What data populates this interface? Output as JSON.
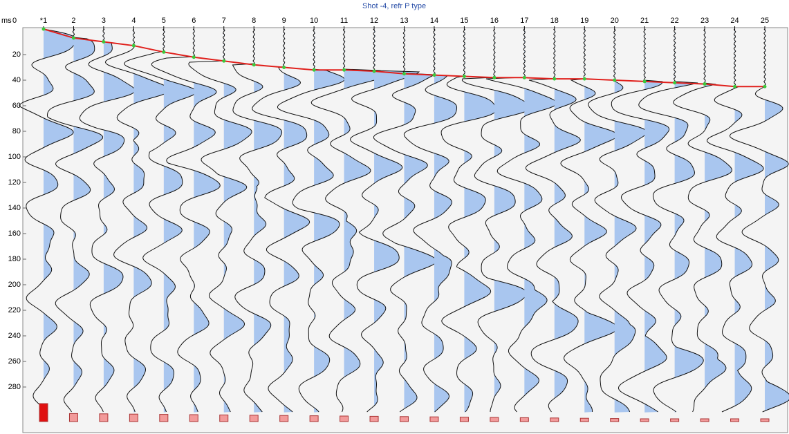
{
  "chart_data": {
    "type": "line",
    "title": "Shot -4, refr P type",
    "y_label": "ms",
    "categories": [
      "*1",
      "2",
      "3",
      "4",
      "5",
      "6",
      "7",
      "8",
      "9",
      "10",
      "11",
      "12",
      "13",
      "14",
      "15",
      "16",
      "17",
      "18",
      "19",
      "20",
      "21",
      "22",
      "23",
      "24",
      "25"
    ],
    "series": [
      {
        "name": "refr P",
        "color": "#e0201c",
        "values": [
          0,
          7,
          10,
          13,
          18,
          22,
          25,
          28,
          30,
          32,
          32,
          33,
          35,
          36,
          37,
          38,
          38,
          39,
          39,
          40,
          41,
          42,
          43,
          45,
          45
        ]
      }
    ],
    "ylim": [
      0,
      315
    ],
    "yticks": [
      0,
      20,
      40,
      60,
      80,
      100,
      120,
      140,
      160,
      180,
      200,
      220,
      240,
      260,
      280
    ],
    "invert_y": true
  }
}
